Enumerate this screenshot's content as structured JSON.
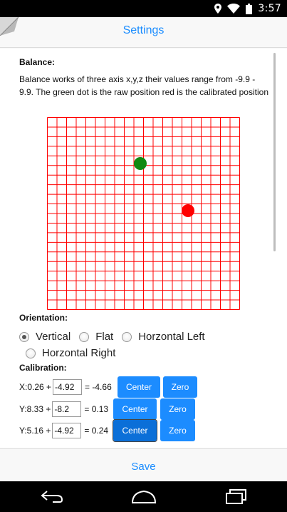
{
  "status_bar": {
    "time": "3:57",
    "icons": [
      "location-icon",
      "wifi-icon",
      "battery-icon"
    ]
  },
  "header": {
    "title": "Settings"
  },
  "balance": {
    "label": "Balance:",
    "description": "Balance works of three axis x,y,z their values range from -9.9 - 9.9. The green dot is the raw position red is the calibrated position",
    "grid_color": "#ff0000",
    "raw_dot_color": "#118a11",
    "calibrated_dot_color": "#ff0000"
  },
  "orientation": {
    "label": "Orientation:",
    "options": [
      {
        "label": "Vertical",
        "checked": true
      },
      {
        "label": "Flat",
        "checked": false
      },
      {
        "label": "Horzontal Left",
        "checked": false
      },
      {
        "label": "Horzontal Right",
        "checked": false
      }
    ]
  },
  "calibration": {
    "label": "Calibration:",
    "rows": [
      {
        "prefix": "X:0.26 +",
        "offset": "-4.92",
        "result": "= -4.66",
        "center_label": "Center",
        "zero_label": "Zero"
      },
      {
        "prefix": "Y:8.33 +",
        "offset": "-8.2",
        "result": "= 0.13",
        "center_label": "Center",
        "zero_label": "Zero"
      },
      {
        "prefix": "Y:5.16 +",
        "offset": "-4.92",
        "result": "= 0.24",
        "center_label": "Center",
        "zero_label": "Zero"
      }
    ]
  },
  "footer": {
    "save_label": "Save"
  },
  "colors": {
    "accent": "#1a8cff",
    "button": "#1c8cff"
  }
}
